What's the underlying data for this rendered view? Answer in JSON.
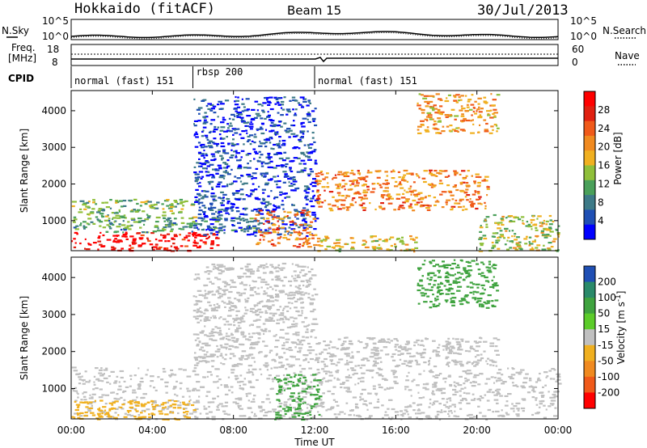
{
  "header": {
    "station": "Hokkaido (fitACF)",
    "beam": "Beam 15",
    "date": "30/Jul/2013"
  },
  "noise_panel": {
    "left_label": "N.Sky",
    "right_label": "N.Search",
    "left_ticks": [
      "10^5",
      "10^0"
    ],
    "right_ticks": [
      "10^5",
      "10^0"
    ]
  },
  "freq_panel": {
    "left_label_1": "Freq.",
    "left_label_2": "[MHz]",
    "right_label": "Nave",
    "left_ticks": [
      "18",
      "8"
    ],
    "right_ticks": [
      "60",
      "0"
    ]
  },
  "cpid": {
    "label": "CPID",
    "segments": [
      {
        "label": "normal (fast) 151",
        "start": 0,
        "end": 6
      },
      {
        "label": "rbsp 200",
        "start": 6,
        "end": 12
      },
      {
        "label": "normal (fast) 151",
        "start": 12,
        "end": 24
      }
    ]
  },
  "x_axis": {
    "label": "Time UT",
    "ticks": [
      "00:00",
      "04:00",
      "08:00",
      "12:00",
      "16:00",
      "20:00",
      "00:00"
    ]
  },
  "chart_data": [
    {
      "type": "heatmap",
      "title": "",
      "xlabel": "Time UT",
      "ylabel": "Slant Range [km]",
      "x_unit": "hour UT",
      "xlim": [
        0,
        24
      ],
      "ylim": [
        180,
        4550
      ],
      "y_ticks": [
        "1000",
        "2000",
        "3000",
        "4000"
      ],
      "colorbar": {
        "label": "Power [dB]",
        "ticks": [
          "4",
          "8",
          "12",
          "16",
          "20",
          "24",
          "28"
        ],
        "colors": [
          "#0000ff",
          "#1f4fb4",
          "#3d7a87",
          "#4aa05a",
          "#8fbf3a",
          "#f0b020",
          "#f08a20",
          "#f05a1a",
          "#e02010",
          "#ff0000"
        ]
      },
      "regions": [
        {
          "x": [
            0,
            7.2
          ],
          "y": [
            180,
            700
          ],
          "value": 30
        },
        {
          "x": [
            0,
            9.5
          ],
          "y": [
            700,
            1100
          ],
          "value": 12
        },
        {
          "x": [
            0,
            6
          ],
          "y": [
            1100,
            1600
          ],
          "value": 14
        },
        {
          "x": [
            6,
            12
          ],
          "y": [
            600,
            4400
          ],
          "value": 6
        },
        {
          "x": [
            9,
            12
          ],
          "y": [
            300,
            1300
          ],
          "value": 22
        },
        {
          "x": [
            12,
            20.5
          ],
          "y": [
            1300,
            2400
          ],
          "value": 22
        },
        {
          "x": [
            17,
            21
          ],
          "y": [
            3400,
            4500
          ],
          "value": 20
        },
        {
          "x": [
            20,
            24
          ],
          "y": [
            180,
            1200
          ],
          "value": 16
        },
        {
          "x": [
            12,
            17
          ],
          "y": [
            180,
            600
          ],
          "value": 18
        }
      ]
    },
    {
      "type": "heatmap",
      "title": "",
      "xlabel": "Time UT",
      "ylabel": "Slant Range [km]",
      "x_unit": "hour UT",
      "xlim": [
        0,
        24
      ],
      "ylim": [
        180,
        4550
      ],
      "y_ticks": [
        "1000",
        "2000",
        "3000",
        "4000"
      ],
      "colorbar": {
        "label": "Velocity [m s^-1]",
        "ticks": [
          "200",
          "100",
          "50",
          "15",
          "-15",
          "-50",
          "-100",
          "-200"
        ],
        "colors": [
          "#1f4fb4",
          "#2a8a6a",
          "#3fa33f",
          "#5ccc2a",
          "#c0c0c0",
          "#f0b020",
          "#f08a20",
          "#f05a1a",
          "#ff0000"
        ]
      },
      "regions": [
        {
          "x": [
            0,
            24
          ],
          "y": [
            180,
            1600
          ],
          "value": 0
        },
        {
          "x": [
            6,
            12
          ],
          "y": [
            1600,
            4400
          ],
          "value": 0
        },
        {
          "x": [
            10,
            12.2
          ],
          "y": [
            180,
            1400
          ],
          "value": 70
        },
        {
          "x": [
            12,
            21
          ],
          "y": [
            1600,
            2400
          ],
          "value": 0
        },
        {
          "x": [
            17,
            21
          ],
          "y": [
            3200,
            4500
          ],
          "value": 70
        },
        {
          "x": [
            0,
            6
          ],
          "y": [
            180,
            700
          ],
          "value": -40
        }
      ]
    }
  ]
}
